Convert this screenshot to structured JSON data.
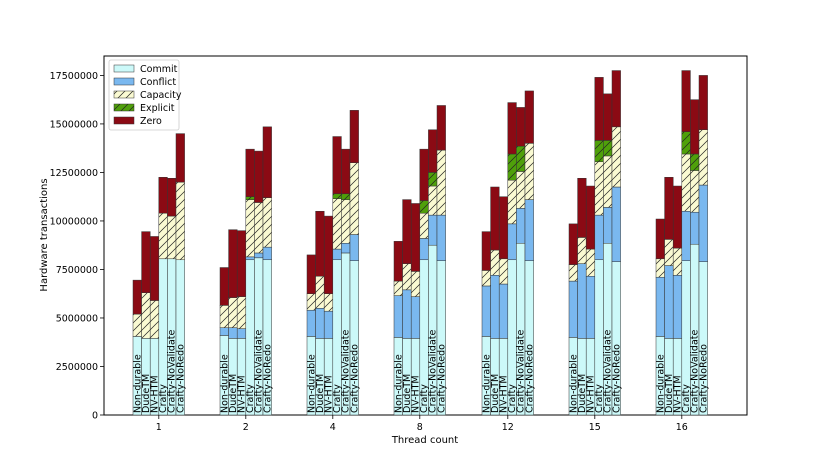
{
  "chart_data": {
    "type": "bar",
    "title": "",
    "xlabel": "Thread count",
    "ylabel": "Hardware transactions",
    "ylim": [
      0,
      18500000
    ],
    "yticks": [
      0,
      2500000,
      5000000,
      7500000,
      10000000,
      12500000,
      15000000,
      17500000
    ],
    "ytick_labels": [
      "0",
      "2500000",
      "5000000",
      "7500000",
      "10000000",
      "12500000",
      "15000000",
      "17500000"
    ],
    "groups": [
      "1",
      "2",
      "4",
      "8",
      "12",
      "15",
      "16"
    ],
    "variants": [
      "Non-durable",
      "DudeTM",
      "NV-HTM",
      "Crafty",
      "Crafty-NoValidate",
      "Crafty-NoRedo"
    ],
    "legend_position": "upper-left",
    "colors": {
      "Commit": "#ccf9f9",
      "Conflict": "#7ab8ef",
      "Capacity": "#fafad2",
      "Explicit": "#4fa00a",
      "Zero": "#8b0a14",
      "edge": "#333333"
    },
    "series": [
      {
        "name": "Commit",
        "hatch": false,
        "values": [
          [
            4050000,
            3950000,
            3950000,
            8050000,
            8050000,
            8000000
          ],
          [
            4100000,
            3950000,
            3950000,
            8000000,
            8100000,
            8000000
          ],
          [
            4050000,
            3950000,
            3950000,
            8000000,
            8350000,
            7950000
          ],
          [
            4000000,
            3950000,
            3950000,
            8000000,
            8750000,
            7950000
          ],
          [
            4050000,
            3950000,
            3950000,
            8000000,
            8850000,
            7950000
          ],
          [
            4000000,
            3950000,
            3950000,
            8000000,
            8850000,
            7900000
          ],
          [
            4050000,
            3950000,
            3950000,
            7950000,
            8800000,
            7900000
          ]
        ]
      },
      {
        "name": "Conflict",
        "hatch": false,
        "values": [
          [
            0,
            0,
            0,
            0,
            0,
            0
          ],
          [
            400000,
            550000,
            500000,
            150000,
            250000,
            650000
          ],
          [
            1350000,
            1550000,
            1400000,
            550000,
            500000,
            1350000
          ],
          [
            2150000,
            2500000,
            2150000,
            1100000,
            1550000,
            2350000
          ],
          [
            2600000,
            3250000,
            2800000,
            1850000,
            1800000,
            3150000
          ],
          [
            2900000,
            3850000,
            3200000,
            2300000,
            1850000,
            3850000
          ],
          [
            3050000,
            3750000,
            3250000,
            2550000,
            1650000,
            3950000
          ]
        ]
      },
      {
        "name": "Capacity",
        "hatch": true,
        "values": [
          [
            1150000,
            2350000,
            1950000,
            2350000,
            2200000,
            4000000
          ],
          [
            1150000,
            1550000,
            1650000,
            2950000,
            2600000,
            2550000
          ],
          [
            850000,
            1650000,
            900000,
            2600000,
            2250000,
            3700000
          ],
          [
            750000,
            1350000,
            1300000,
            1300000,
            1500000,
            3350000
          ],
          [
            800000,
            1300000,
            1300000,
            2250000,
            1900000,
            2900000
          ],
          [
            850000,
            1350000,
            1400000,
            2750000,
            2650000,
            3100000
          ],
          [
            950000,
            1350000,
            1400000,
            2950000,
            2150000,
            2850000
          ]
        ]
      },
      {
        "name": "Explicit",
        "hatch": true,
        "values": [
          [
            0,
            0,
            0,
            0,
            0,
            0
          ],
          [
            0,
            0,
            0,
            150000,
            0,
            0
          ],
          [
            0,
            0,
            0,
            250000,
            300000,
            0
          ],
          [
            0,
            0,
            0,
            650000,
            700000,
            0
          ],
          [
            0,
            0,
            0,
            1350000,
            1300000,
            0
          ],
          [
            0,
            0,
            0,
            1100000,
            800000,
            0
          ],
          [
            0,
            0,
            0,
            1150000,
            850000,
            0
          ]
        ]
      },
      {
        "name": "Zero",
        "hatch": false,
        "values": [
          [
            1750000,
            3150000,
            3300000,
            1850000,
            1950000,
            2500000
          ],
          [
            1950000,
            3500000,
            3400000,
            2450000,
            2650000,
            3650000
          ],
          [
            2000000,
            3350000,
            4000000,
            2950000,
            2300000,
            2700000
          ],
          [
            2050000,
            3300000,
            3500000,
            2650000,
            2200000,
            2300000
          ],
          [
            2000000,
            3250000,
            3200000,
            2650000,
            2000000,
            2700000
          ],
          [
            2100000,
            3050000,
            3250000,
            3250000,
            2400000,
            2900000
          ],
          [
            2050000,
            3200000,
            3200000,
            3150000,
            2800000,
            2800000
          ]
        ]
      }
    ]
  }
}
